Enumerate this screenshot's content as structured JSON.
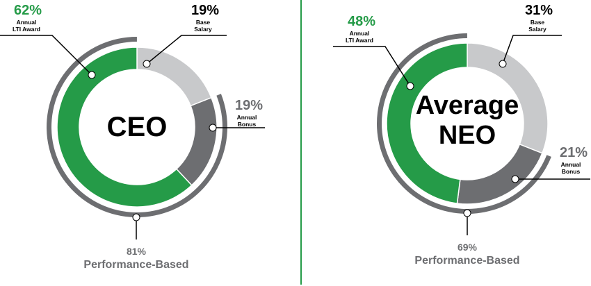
{
  "colors": {
    "lti": "#259b48",
    "base": "#c8c9cb",
    "bonus": "#6d6e71",
    "performance_arc": "#6d6e71",
    "divider": "#259b48",
    "pct_green": "#259b48",
    "pct_gray": "#6d6e71",
    "pct_black": "#000000"
  },
  "chart_data": [
    {
      "type": "pie",
      "title": "CEO",
      "categories": [
        "Base Salary",
        "Annual Bonus",
        "Annual LTI Award"
      ],
      "values": [
        19,
        19,
        62
      ],
      "value_labels": [
        "19%",
        "19%",
        "62%"
      ],
      "label_lines": [
        [
          "Base",
          "Salary"
        ],
        [
          "Annual",
          "Bonus"
        ],
        [
          "Annual",
          "LTI Award"
        ]
      ],
      "performance_based": {
        "value": 81,
        "pct_label": "81%",
        "label": "Performance-Based"
      }
    },
    {
      "type": "pie",
      "title": "Average NEO",
      "title_lines": [
        "Average",
        "NEO"
      ],
      "categories": [
        "Base Salary",
        "Annual Bonus",
        "Annual LTI Award"
      ],
      "values": [
        31,
        21,
        48
      ],
      "value_labels": [
        "31%",
        "21%",
        "48%"
      ],
      "label_lines": [
        [
          "Base",
          "Salary"
        ],
        [
          "Annual",
          "Bonus"
        ],
        [
          "Annual",
          "LTI Award"
        ]
      ],
      "performance_based": {
        "value": 69,
        "pct_label": "69%",
        "label": "Performance-Based"
      }
    }
  ]
}
